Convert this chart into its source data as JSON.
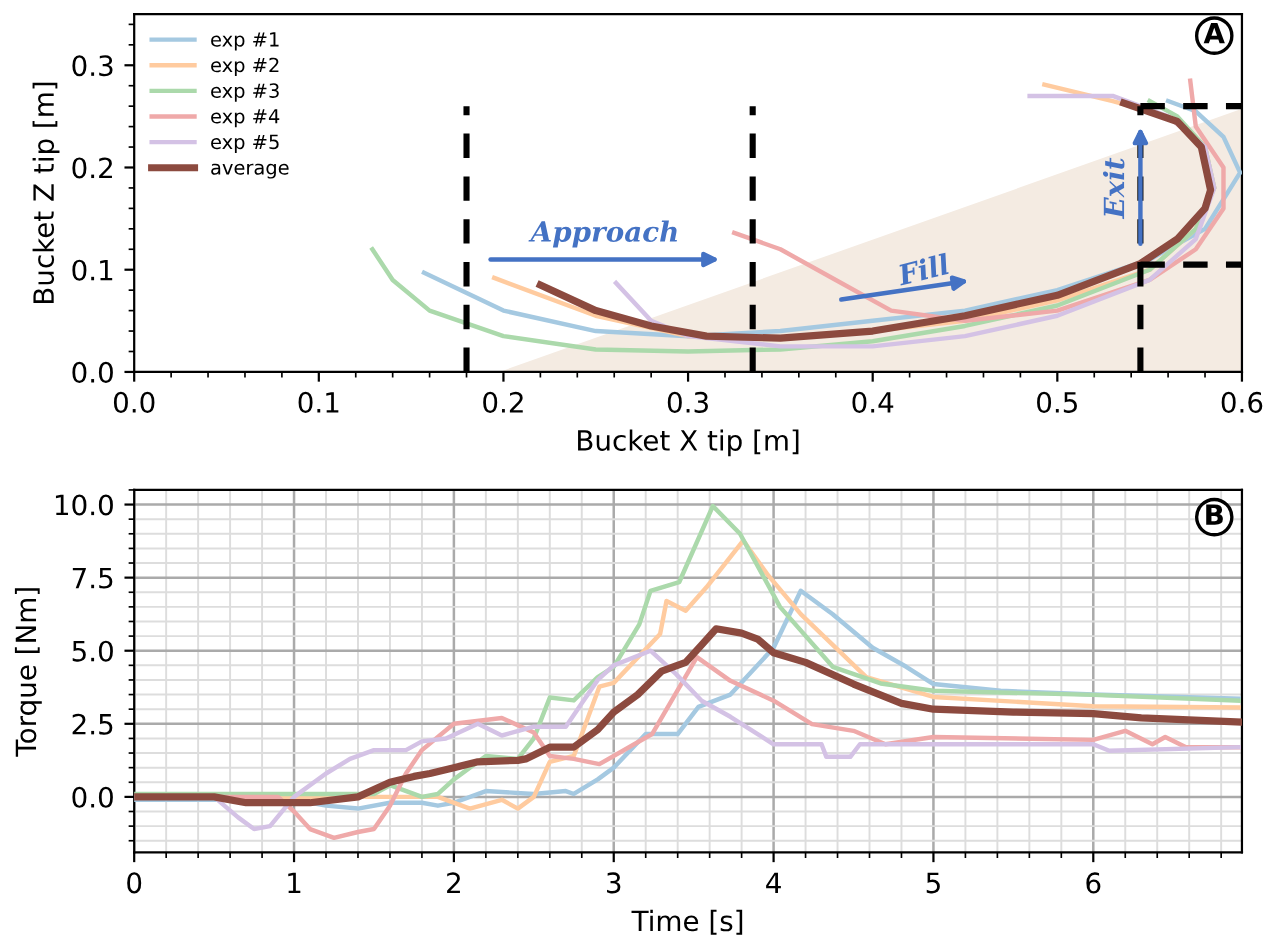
{
  "chart_data": [
    {
      "type": "line",
      "xlabel": "Bucket X tip [m]",
      "ylabel": "Bucket Z tip [m]",
      "xlim": [
        0,
        0.6
      ],
      "ylim": [
        0,
        0.35
      ],
      "xticks": [
        {
          "value": 0,
          "label": "0.0"
        },
        0.1,
        0.2,
        0.3,
        0.4,
        0.5,
        0.6
      ],
      "yticks": [
        {
          "value": 0,
          "label": "0.0"
        },
        0.1,
        0.2,
        0.3
      ],
      "grid": false,
      "legend": "top left",
      "line_style": "solid",
      "marker": "none",
      "ref_lines": [
        {
          "axis": "x",
          "value": 0.18,
          "color": "#000000",
          "line_style": "dashed"
        },
        {
          "axis": "x",
          "value": 0.335,
          "color": "#000000",
          "line_style": "dashed"
        },
        {
          "axis": "x",
          "value": 0.545,
          "color": "#000000",
          "line_style": "dashed"
        },
        {
          "axis": "y",
          "value": 0.105,
          "color": "#000000",
          "line_style": "dashed"
        },
        {
          "axis": "y",
          "value": 0.26,
          "color": "#000000",
          "line_style": "dashed"
        }
      ],
      "annotations": [
        "Approach",
        "Fill",
        "Exit",
        "A"
      ],
      "series": [
        {
          "name": "exp #1",
          "color": "#a5c9e1",
          "x": [
            0.157,
            0.2,
            0.25,
            0.3,
            0.35,
            0.4,
            0.45,
            0.5,
            0.55,
            0.58,
            0.599,
            0.59,
            0.575,
            0.56
          ],
          "values": [
            0.097,
            0.06,
            0.04,
            0.035,
            0.04,
            0.05,
            0.06,
            0.08,
            0.11,
            0.14,
            0.195,
            0.23,
            0.255,
            0.265
          ]
        },
        {
          "name": "exp #2",
          "color": "#ffcb9f",
          "x": [
            0.195,
            0.25,
            0.3,
            0.35,
            0.4,
            0.45,
            0.5,
            0.55,
            0.575,
            0.585,
            0.58,
            0.56,
            0.53,
            0.493
          ],
          "values": [
            0.092,
            0.055,
            0.035,
            0.033,
            0.04,
            0.05,
            0.07,
            0.1,
            0.14,
            0.18,
            0.22,
            0.25,
            0.265,
            0.281
          ]
        },
        {
          "name": "exp #3",
          "color": "#abd9ab",
          "x": [
            0.129,
            0.14,
            0.16,
            0.2,
            0.25,
            0.3,
            0.35,
            0.4,
            0.45,
            0.5,
            0.55,
            0.575,
            0.585,
            0.58,
            0.565,
            0.55
          ],
          "values": [
            0.12,
            0.09,
            0.06,
            0.035,
            0.022,
            0.02,
            0.022,
            0.03,
            0.045,
            0.065,
            0.1,
            0.14,
            0.18,
            0.22,
            0.25,
            0.265
          ]
        },
        {
          "name": "exp #4",
          "color": "#efa9a9",
          "x": [
            0.325,
            0.35,
            0.38,
            0.41,
            0.45,
            0.5,
            0.55,
            0.575,
            0.59,
            0.59,
            0.575,
            0.572
          ],
          "values": [
            0.136,
            0.12,
            0.09,
            0.06,
            0.05,
            0.06,
            0.09,
            0.12,
            0.16,
            0.2,
            0.24,
            0.285
          ]
        },
        {
          "name": "exp #5",
          "color": "#d4c2e5",
          "x": [
            0.261,
            0.28,
            0.3,
            0.35,
            0.4,
            0.45,
            0.5,
            0.55,
            0.575,
            0.585,
            0.58,
            0.56,
            0.53,
            0.485
          ],
          "values": [
            0.087,
            0.05,
            0.035,
            0.025,
            0.025,
            0.035,
            0.055,
            0.09,
            0.13,
            0.18,
            0.22,
            0.25,
            0.27,
            0.27
          ]
        },
        {
          "name": "average",
          "color": "#8c4a3f",
          "x": [
            0.22,
            0.25,
            0.28,
            0.31,
            0.35,
            0.4,
            0.45,
            0.5,
            0.545,
            0.565,
            0.58,
            0.583,
            0.578,
            0.565,
            0.536
          ],
          "values": [
            0.085,
            0.06,
            0.045,
            0.035,
            0.033,
            0.04,
            0.055,
            0.075,
            0.106,
            0.13,
            0.16,
            0.178,
            0.22,
            0.245,
            0.263
          ]
        }
      ]
    },
    {
      "type": "line",
      "xlabel": "Time [s]",
      "ylabel": "Torque [Nm]",
      "xlim": [
        0,
        6.93
      ],
      "ylim": [
        -1.9,
        10.5
      ],
      "xticks": [
        0,
        1,
        2,
        3,
        4,
        5,
        6
      ],
      "yticks": [
        {
          "value": 0,
          "label": "0.0"
        },
        2.5,
        {
          "value": 5,
          "label": "5.0"
        },
        7.5,
        {
          "value": 10,
          "label": "10.0"
        }
      ],
      "grid": true,
      "legend": false,
      "line_style": "solid",
      "marker": "none",
      "annotations": [
        "B"
      ],
      "series": [
        {
          "color": "#a5c9e1",
          "x": [
            0,
            1,
            1.2,
            1.4,
            1.6,
            1.8,
            1.9,
            2,
            2.2,
            2.5,
            2.7,
            2.75,
            2.9,
            3,
            3.2,
            3.4,
            3.53,
            3.73,
            4,
            4.17,
            4.37,
            4.62,
            4.83,
            5,
            5.42,
            6,
            6.91
          ],
          "values": [
            -0.1,
            -0.1,
            -0.3,
            -0.4,
            -0.2,
            -0.2,
            -0.3,
            -0.2,
            0.2,
            0.1,
            0.2,
            0.1,
            0.6,
            1,
            2.15,
            2.15,
            3.08,
            3.5,
            5.1,
            7.05,
            6.25,
            5.1,
            4.45,
            3.86,
            3.63,
            3.5,
            3.36
          ]
        },
        {
          "color": "#ffcb9f",
          "x": [
            0,
            1.9,
            2.1,
            2.3,
            2.4,
            2.5,
            2.6,
            2.75,
            2.91,
            3.0,
            3.29,
            3.33,
            3.45,
            3.58,
            3.81,
            3.96,
            4.17,
            4.58,
            5,
            6,
            6.91
          ],
          "values": [
            0,
            0,
            -0.4,
            -0.1,
            -0.4,
            0,
            1.2,
            1.4,
            3.77,
            3.9,
            5.57,
            6.7,
            6.37,
            7.17,
            8.77,
            7.62,
            6.25,
            4.1,
            3.42,
            3.1,
            3.06
          ]
        },
        {
          "color": "#abd9ab",
          "x": [
            0,
            1.5,
            1.6,
            1.8,
            1.9,
            2,
            2.2,
            2.4,
            2.5,
            2.6,
            2.75,
            2.9,
            3,
            3.16,
            3.23,
            3.41,
            3.62,
            3.79,
            4.04,
            4.37,
            4.67,
            5,
            6,
            6.91
          ],
          "values": [
            0.1,
            0.1,
            0.4,
            0,
            0.1,
            0.6,
            1.4,
            1.3,
            2,
            3.4,
            3.3,
            4.1,
            4.45,
            5.9,
            7.05,
            7.35,
            9.95,
            9.0,
            6.5,
            4.45,
            3.88,
            3.63,
            3.49,
            3.29
          ]
        },
        {
          "color": "#efa9a9",
          "x": [
            0,
            0.9,
            1,
            1.1,
            1.25,
            1.4,
            1.5,
            1.6,
            1.7,
            1.8,
            2,
            2.3,
            2.5,
            2.6,
            2.75,
            2.91,
            3.24,
            3.52,
            3.73,
            4,
            4.24,
            4.5,
            4.7,
            5,
            6,
            6.2,
            6.37,
            6.45,
            6.58,
            6.91
          ],
          "values": [
            0,
            0,
            -0.5,
            -1.1,
            -1.4,
            -1.2,
            -1.1,
            -0.3,
            0.8,
            1.6,
            2.5,
            2.7,
            2.2,
            1.4,
            1.3,
            1.12,
            2.15,
            4.78,
            3.97,
            3.29,
            2.49,
            2.26,
            1.8,
            2.05,
            1.95,
            2.26,
            1.8,
            2.05,
            1.7,
            1.7
          ]
        },
        {
          "color": "#d4c2e5",
          "x": [
            0,
            0.5,
            0.65,
            0.75,
            0.85,
            1,
            1.2,
            1.35,
            1.5,
            1.7,
            1.8,
            1.95,
            2.15,
            2.3,
            2.5,
            2.7,
            2.8,
            2.9,
            3,
            3.23,
            3.39,
            3.55,
            3.73,
            4,
            4.3,
            4.33,
            4.48,
            4.54,
            5,
            6,
            6.1,
            6.91
          ],
          "values": [
            0,
            0,
            -0.7,
            -1.1,
            -1,
            0,
            0.8,
            1.3,
            1.6,
            1.6,
            1.9,
            2,
            2.5,
            2.1,
            2.4,
            2.4,
            3.2,
            4,
            4.5,
            5,
            4.2,
            3.29,
            2.74,
            1.8,
            1.8,
            1.37,
            1.37,
            1.8,
            1.8,
            1.8,
            1.58,
            1.7
          ]
        },
        {
          "color": "#8c4a3f",
          "x": [
            0,
            0.5,
            0.7,
            1.1,
            1.4,
            1.6,
            1.75,
            1.85,
            2,
            2.15,
            2.4,
            2.45,
            2.6,
            2.75,
            2.9,
            3,
            3.15,
            3.3,
            3.45,
            3.55,
            3.64,
            3.8,
            3.9,
            4,
            4.2,
            4.5,
            4.8,
            5,
            5.5,
            6,
            6.3,
            6.91
          ],
          "values": [
            0,
            0,
            -0.2,
            -0.2,
            0,
            0.5,
            0.7,
            0.8,
            1,
            1.2,
            1.25,
            1.3,
            1.7,
            1.7,
            2.3,
            2.9,
            3.5,
            4.3,
            4.6,
            5.2,
            5.75,
            5.6,
            5.4,
            4.93,
            4.6,
            3.86,
            3.2,
            3.0,
            2.9,
            2.85,
            2.7,
            2.56
          ]
        }
      ]
    }
  ]
}
